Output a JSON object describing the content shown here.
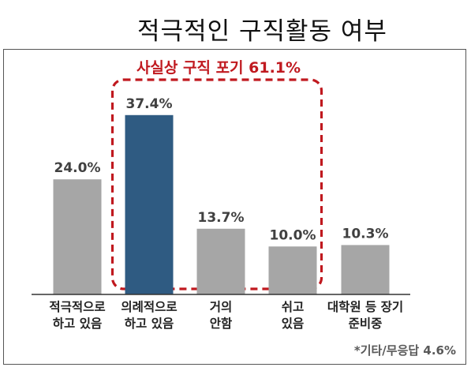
{
  "title": "적극적인 구직활동 여부",
  "chart_data": {
    "type": "bar",
    "categories": [
      [
        "적극적으로",
        "하고 있음"
      ],
      [
        "의례적으로",
        "하고 있음"
      ],
      [
        "거의",
        "안함"
      ],
      [
        "쉬고",
        "있음"
      ],
      [
        "대학원 등 장기",
        "준비중"
      ]
    ],
    "values": [
      24.0,
      37.4,
      13.7,
      10.0,
      10.3
    ],
    "value_labels": [
      "24.0%",
      "37.4%",
      "13.7%",
      "10.0%",
      "10.3%"
    ],
    "ylim": [
      0,
      40
    ],
    "grid": false,
    "bar_colors": [
      "#a6a6a6",
      "#2f5b82",
      "#a6a6a6",
      "#a6a6a6",
      "#a6a6a6"
    ],
    "highlight": {
      "label": "사실상 구직 포기 61.1%",
      "color": "#c0191f",
      "covers": [
        1,
        2,
        3
      ]
    },
    "footnote": "*기타/무응답 4.6%"
  }
}
